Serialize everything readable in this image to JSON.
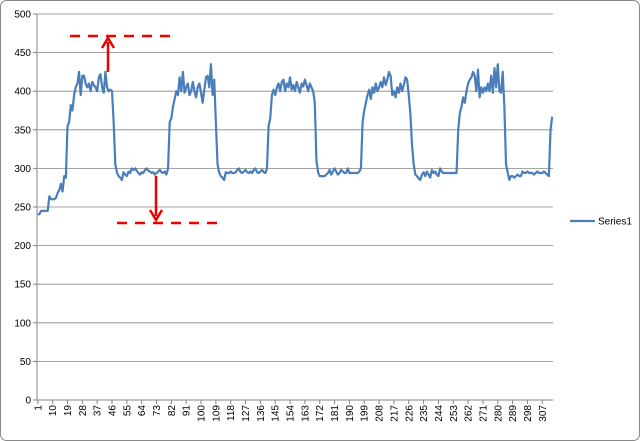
{
  "chart_data": {
    "type": "line",
    "categories": [
      1,
      null,
      null,
      null,
      null,
      null,
      null,
      null,
      null,
      10,
      null,
      null,
      null,
      null,
      null,
      null,
      null,
      null,
      19,
      null,
      null,
      null,
      null,
      null,
      null,
      null,
      null,
      28,
      null,
      null,
      null,
      null,
      null,
      null,
      null,
      null,
      37,
      null,
      null,
      null,
      null,
      null,
      null,
      null,
      null,
      46,
      null,
      null,
      null,
      null,
      null,
      null,
      null,
      null,
      55,
      null,
      null,
      null,
      null,
      null,
      null,
      null,
      null,
      64,
      null,
      null,
      null,
      null,
      null,
      null,
      null,
      null,
      73,
      null,
      null,
      null,
      null,
      null,
      null,
      null,
      null,
      82,
      null,
      null,
      null,
      null,
      null,
      null,
      null,
      null,
      91,
      null,
      null,
      null,
      null,
      null,
      null,
      null,
      null,
      100,
      null,
      null,
      null,
      null,
      null,
      null,
      null,
      null,
      109,
      null,
      null,
      null,
      null,
      null,
      null,
      null,
      null,
      118,
      null,
      null,
      null,
      null,
      null,
      null,
      null,
      null,
      127,
      null,
      null,
      null,
      null,
      null,
      null,
      null,
      null,
      136,
      null,
      null,
      null,
      null,
      null,
      null,
      null,
      null,
      145,
      null,
      null,
      null,
      null,
      null,
      null,
      null,
      null,
      154,
      null,
      null,
      null,
      null,
      null,
      null,
      null,
      null,
      163,
      null,
      null,
      null,
      null,
      null,
      null,
      null,
      null,
      172,
      null,
      null,
      null,
      null,
      null,
      null,
      null,
      null,
      181,
      null,
      null,
      null,
      null,
      null,
      null,
      null,
      null,
      190,
      null,
      null,
      null,
      null,
      null,
      null,
      null,
      null,
      199,
      null,
      null,
      null,
      null,
      null,
      null,
      null,
      null,
      208,
      null,
      null,
      null,
      null,
      null,
      null,
      null,
      null,
      217,
      null,
      null,
      null,
      null,
      null,
      null,
      null,
      null,
      226,
      null,
      null,
      null,
      null,
      null,
      null,
      null,
      null,
      235,
      null,
      null,
      null,
      null,
      null,
      null,
      null,
      null,
      244,
      null,
      null,
      null,
      null,
      null,
      null,
      null,
      null,
      253,
      null,
      null,
      null,
      null,
      null,
      null,
      null,
      null,
      262,
      null,
      null,
      null,
      null,
      null,
      null,
      null,
      null,
      271,
      null,
      null,
      null,
      null,
      null,
      null,
      null,
      null,
      280,
      null,
      null,
      null,
      null,
      null,
      null,
      null,
      null,
      289,
      null,
      null,
      null,
      null,
      null,
      null,
      null,
      null,
      298,
      null,
      null,
      null,
      null,
      null,
      null,
      null,
      null,
      307,
      null,
      null,
      null,
      null,
      null,
      null
    ],
    "series": [
      {
        "name": "Series1",
        "color": "#4a7ebb",
        "values": [
          240,
          241,
          245,
          245,
          245,
          245,
          245,
          264,
          260,
          260,
          260,
          262,
          268,
          272,
          280,
          270,
          290,
          288,
          355,
          360,
          382,
          375,
          395,
          405,
          410,
          425,
          395,
          420,
          420,
          410,
          405,
          410,
          400,
          412,
          408,
          405,
          400,
          418,
          422,
          405,
          398,
          425,
          405,
          400,
          402,
          400,
          360,
          305,
          295,
          290,
          288,
          285,
          295,
          292,
          290,
          296,
          294,
          300,
          298,
          300,
          297,
          294,
          292,
          295,
          294,
          298,
          300,
          297,
          296,
          294,
          295,
          292,
          294,
          296,
          298,
          295,
          294,
          296,
          292,
          300,
          360,
          365,
          380,
          390,
          400,
          395,
          418,
          400,
          425,
          398,
          405,
          410,
          395,
          400,
          412,
          400,
          392,
          405,
          410,
          398,
          385,
          402,
          418,
          420,
          405,
          435,
          395,
          415,
          360,
          305,
          295,
          290,
          288,
          285,
          295,
          294,
          294,
          296,
          294,
          294,
          295,
          298,
          300,
          295,
          294,
          296,
          298,
          295,
          294,
          296,
          294,
          298,
          300,
          295,
          294,
          296,
          298,
          295,
          294,
          300,
          355,
          365,
          395,
          402,
          395,
          405,
          410,
          400,
          412,
          415,
          400,
          410,
          405,
          418,
          402,
          408,
          400,
          412,
          405,
          398,
          410,
          406,
          415,
          408,
          400,
          410,
          405,
          400,
          385,
          310,
          295,
          290,
          290,
          290,
          290,
          292,
          294,
          298,
          292,
          296,
          300,
          296,
          292,
          294,
          298,
          296,
          294,
          294,
          300,
          294,
          294,
          294,
          294,
          294,
          294,
          296,
          300,
          360,
          375,
          385,
          395,
          402,
          390,
          405,
          398,
          410,
          400,
          405,
          412,
          405,
          418,
          408,
          415,
          425,
          420,
          395,
          400,
          392,
          405,
          398,
          410,
          400,
          408,
          418,
          415,
          395,
          370,
          330,
          305,
          292,
          290,
          287,
          285,
          292,
          295,
          290,
          296,
          292,
          288,
          298,
          294,
          296,
          292,
          290,
          300,
          296,
          294,
          294,
          294,
          294,
          294,
          294,
          294,
          294,
          294,
          350,
          372,
          380,
          392,
          385,
          400,
          410,
          415,
          418,
          425,
          420,
          400,
          428,
          392,
          405,
          398,
          405,
          400,
          410,
          400,
          420,
          398,
          430,
          405,
          435,
          400,
          398,
          425,
          380,
          305,
          295,
          285,
          290,
          290,
          288,
          290,
          292,
          290,
          290,
          296,
          294,
          294,
          296,
          294,
          294,
          294,
          292,
          294,
          296,
          294,
          294,
          294,
          296,
          294,
          292,
          290,
          350,
          367
        ]
      }
    ],
    "ylim": [
      0,
      500
    ],
    "yticks": [
      0,
      50,
      100,
      150,
      200,
      250,
      300,
      350,
      400,
      450,
      500
    ],
    "grid": true,
    "legend": "right"
  }
}
